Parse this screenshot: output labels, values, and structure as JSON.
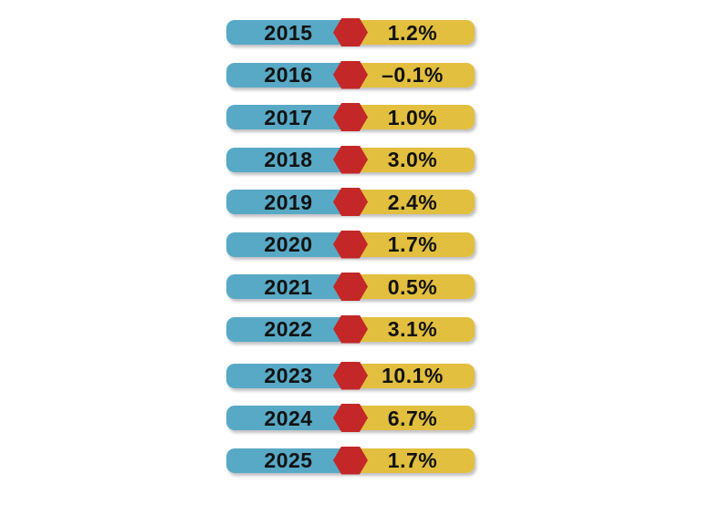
{
  "chart_data": {
    "type": "table",
    "categories": [
      "2015",
      "2016",
      "2017",
      "2018",
      "2019",
      "2020",
      "2021",
      "2022",
      "2023",
      "2024",
      "2025"
    ],
    "values": [
      1.2,
      -0.1,
      1.0,
      3.0,
      2.4,
      1.7,
      0.5,
      3.1,
      10.1,
      6.7,
      1.7
    ],
    "unit": "%",
    "legend": "none",
    "rows": [
      {
        "year": "2015",
        "value_label": "1.2%",
        "value": 1.2
      },
      {
        "year": "2016",
        "value_label": "–0.1%",
        "value": -0.1
      },
      {
        "year": "2017",
        "value_label": "1.0%",
        "value": 1.0
      },
      {
        "year": "2018",
        "value_label": "3.0%",
        "value": 3.0
      },
      {
        "year": "2019",
        "value_label": "2.4%",
        "value": 2.4
      },
      {
        "year": "2020",
        "value_label": "1.7%",
        "value": 1.7
      },
      {
        "year": "2021",
        "value_label": "0.5%",
        "value": 0.5
      },
      {
        "year": "2022",
        "value_label": "3.1%",
        "value": 3.1
      },
      {
        "year": "2023",
        "value_label": "10.1%",
        "value": 10.1
      },
      {
        "year": "2024",
        "value_label": "6.7%",
        "value": 6.7
      },
      {
        "year": "2025",
        "value_label": "1.7%",
        "value": 1.7
      }
    ]
  },
  "colors": {
    "year_segment": "#58A9C5",
    "value_segment": "#E2BF3E",
    "marker": "#C32727",
    "text": "#121212",
    "background": "#FFFFFF"
  }
}
